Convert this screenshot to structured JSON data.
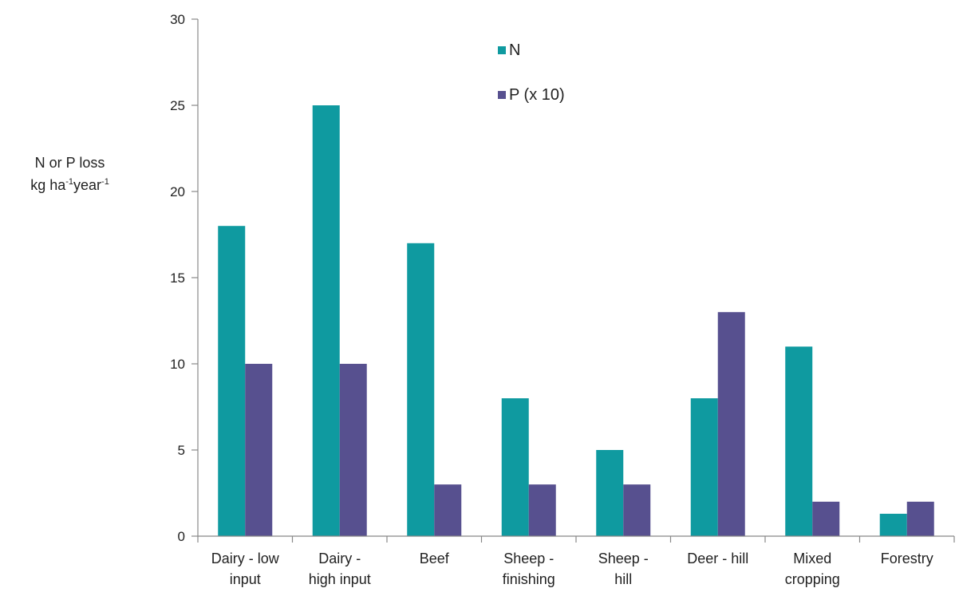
{
  "chart_data": {
    "type": "bar",
    "categories": [
      [
        "Dairy - low",
        "input"
      ],
      [
        "Dairy -",
        "high input"
      ],
      [
        "Beef"
      ],
      [
        "Sheep -",
        "finishing"
      ],
      [
        "Sheep -",
        "hill"
      ],
      [
        "Deer - hill"
      ],
      [
        "Mixed",
        "cropping"
      ],
      [
        "Forestry"
      ]
    ],
    "series": [
      {
        "name": "N",
        "color": "#0f9aa0",
        "values": [
          18,
          25,
          17,
          8,
          5,
          8,
          11,
          1.3
        ]
      },
      {
        "name": "P (x 10)",
        "color": "#57508f",
        "values": [
          10,
          10,
          3,
          3,
          3,
          13,
          2,
          2
        ]
      }
    ],
    "ylim": [
      0,
      30
    ],
    "yticks": [
      0,
      5,
      10,
      15,
      20,
      25,
      30
    ],
    "ylabel": {
      "line1": "N or P loss",
      "kg": "kg ha",
      "exp1": "-1",
      "year": "year",
      "exp2": "-1"
    },
    "legend_position": "top-center",
    "grid": false
  }
}
